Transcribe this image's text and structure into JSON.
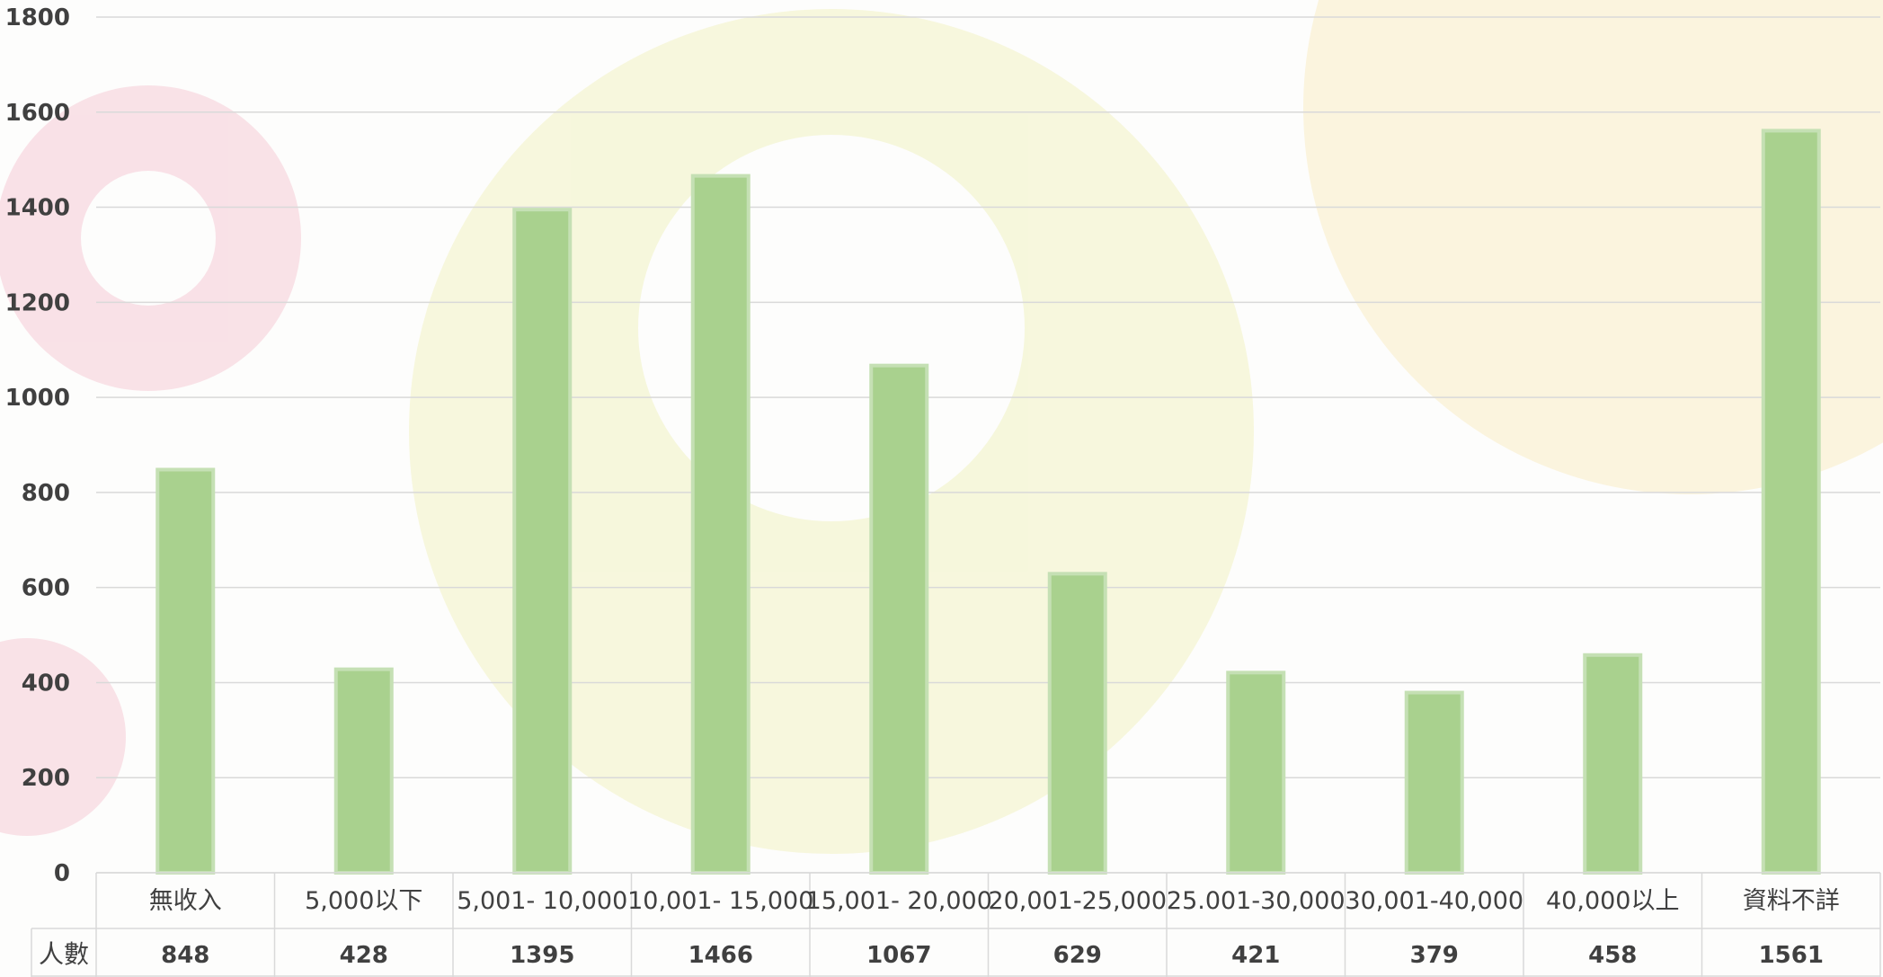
{
  "chart_data": {
    "type": "bar",
    "categories": [
      "無收入",
      "5,000以下",
      "5,001- 10,000",
      "10,001- 15,000",
      "15,001- 20,000",
      "20,001-25,000",
      "25.001-30,000",
      "30,001-40,000",
      "40,000以上",
      "資料不詳"
    ],
    "series": [
      {
        "name": "人數",
        "values": [
          848,
          428,
          1395,
          1466,
          1067,
          629,
          421,
          379,
          458,
          1561
        ]
      }
    ],
    "ylim": [
      0,
      1800
    ],
    "yticks": [
      0,
      200,
      400,
      600,
      800,
      1000,
      1200,
      1400,
      1600,
      1800
    ],
    "grid": true,
    "data_table": true,
    "colors": {
      "bar": "#a9d18e",
      "bar_edge": "#c5e0b4",
      "grid": "#d9d9d9",
      "text": "#404040"
    }
  }
}
